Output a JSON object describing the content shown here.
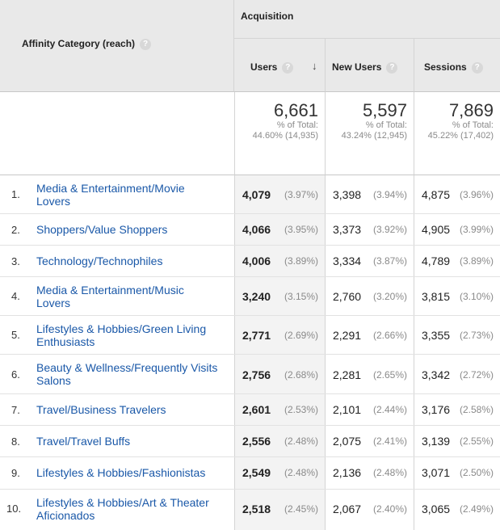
{
  "header": {
    "category_label": "Affinity Category (reach)",
    "group_label": "Acquisition",
    "help_glyph": "?",
    "sort_glyph": "↓",
    "columns": {
      "users": "Users",
      "new_users": "New Users",
      "sessions": "Sessions"
    }
  },
  "totals": {
    "users": {
      "value": "6,661",
      "pct_label": "% of Total:",
      "pct": "44.60% (14,935)"
    },
    "new_users": {
      "value": "5,597",
      "pct_label": "% of Total:",
      "pct": "43.24% (12,945)"
    },
    "sessions": {
      "value": "7,869",
      "pct_label": "% of Total:",
      "pct": "45.22% (17,402)"
    }
  },
  "rows": [
    {
      "idx": "1.",
      "line1": "Media & Entertainment/Movie",
      "line2": "Lovers",
      "users": "4,079",
      "users_pct": "(3.97%)",
      "new": "3,398",
      "new_pct": "(3.94%)",
      "ses": "4,875",
      "ses_pct": "(3.96%)"
    },
    {
      "idx": "2.",
      "line1": "Shoppers/Value Shoppers",
      "line2": "",
      "users": "4,066",
      "users_pct": "(3.95%)",
      "new": "3,373",
      "new_pct": "(3.92%)",
      "ses": "4,905",
      "ses_pct": "(3.99%)"
    },
    {
      "idx": "3.",
      "line1": "Technology/Technophiles",
      "line2": "",
      "users": "4,006",
      "users_pct": "(3.89%)",
      "new": "3,334",
      "new_pct": "(3.87%)",
      "ses": "4,789",
      "ses_pct": "(3.89%)"
    },
    {
      "idx": "4.",
      "line1": "Media & Entertainment/Music",
      "line2": "Lovers",
      "users": "3,240",
      "users_pct": "(3.15%)",
      "new": "2,760",
      "new_pct": "(3.20%)",
      "ses": "3,815",
      "ses_pct": "(3.10%)"
    },
    {
      "idx": "5.",
      "line1": "Lifestyles & Hobbies/Green Living",
      "line2": "Enthusiasts",
      "users": "2,771",
      "users_pct": "(2.69%)",
      "new": "2,291",
      "new_pct": "(2.66%)",
      "ses": "3,355",
      "ses_pct": "(2.73%)"
    },
    {
      "idx": "6.",
      "line1": "Beauty & Wellness/Frequently Visits",
      "line2": "Salons",
      "users": "2,756",
      "users_pct": "(2.68%)",
      "new": "2,281",
      "new_pct": "(2.65%)",
      "ses": "3,342",
      "ses_pct": "(2.72%)"
    },
    {
      "idx": "7.",
      "line1": "Travel/Business Travelers",
      "line2": "",
      "users": "2,601",
      "users_pct": "(2.53%)",
      "new": "2,101",
      "new_pct": "(2.44%)",
      "ses": "3,176",
      "ses_pct": "(2.58%)"
    },
    {
      "idx": "8.",
      "line1": "Travel/Travel Buffs",
      "line2": "",
      "users": "2,556",
      "users_pct": "(2.48%)",
      "new": "2,075",
      "new_pct": "(2.41%)",
      "ses": "3,139",
      "ses_pct": "(2.55%)"
    },
    {
      "idx": "9.",
      "line1": "Lifestyles & Hobbies/Fashionistas",
      "line2": "",
      "users": "2,549",
      "users_pct": "(2.48%)",
      "new": "2,136",
      "new_pct": "(2.48%)",
      "ses": "3,071",
      "ses_pct": "(2.50%)"
    },
    {
      "idx": "10.",
      "line1": "Lifestyles & Hobbies/Art & Theater",
      "line2": "Aficionados",
      "users": "2,518",
      "users_pct": "(2.45%)",
      "new": "2,067",
      "new_pct": "(2.40%)",
      "ses": "3,065",
      "ses_pct": "(2.49%)"
    }
  ]
}
